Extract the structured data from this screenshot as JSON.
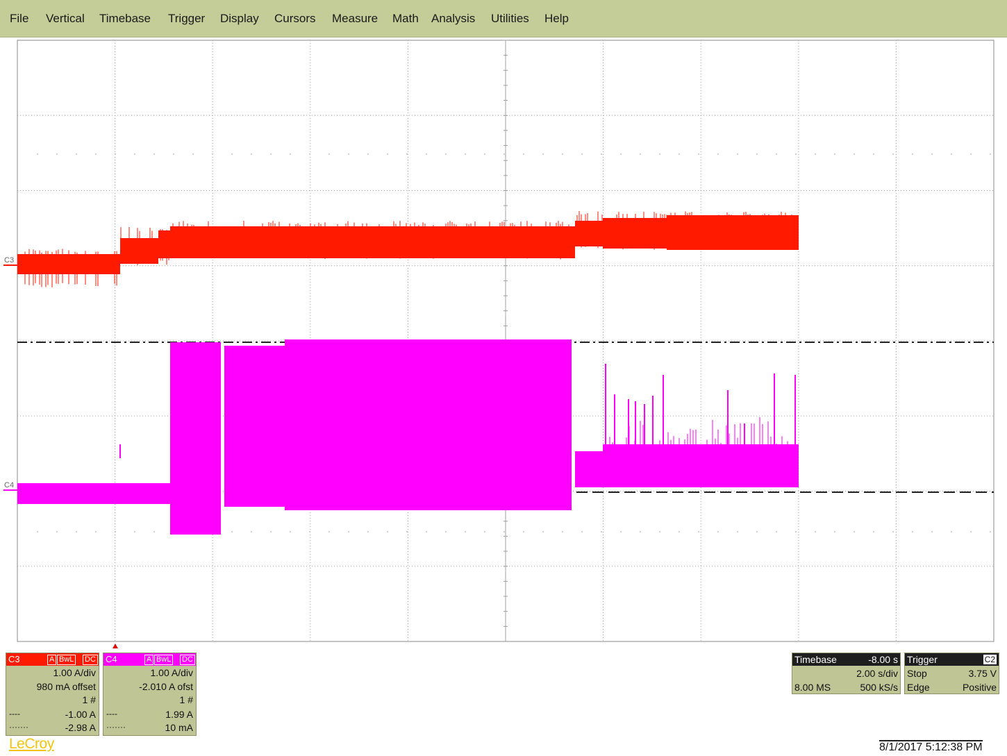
{
  "menu": [
    "File",
    "Vertical",
    "Timebase",
    "Trigger",
    "Display",
    "Cursors",
    "Measure",
    "Math",
    "Analysis",
    "Utilities",
    "Help"
  ],
  "colors": {
    "menu_bg": "#c4cd98",
    "panel_bg": "#bfc595",
    "c3": "#ff1a00",
    "c4": "#ff00ff",
    "grid": "#9a9a9a",
    "brand": "#f2c40f"
  },
  "waveform_labels": {
    "c3": "C3",
    "c4": "C4"
  },
  "channels": [
    {
      "id": "C3",
      "flags": [
        "A",
        "BwL",
        "DC"
      ],
      "scale": "1.00 A/div",
      "offset": "980 mA offset",
      "sweeps": "1 #",
      "cursor1": "-1.00 A",
      "cursor2": "-2.98 A",
      "cursor1_style": "----",
      "cursor2_style": "·······"
    },
    {
      "id": "C4",
      "flags": [
        "A",
        "BwL",
        "DC"
      ],
      "scale": "1.00 A/div",
      "offset": "-2.010 A ofst",
      "sweeps": "1 #",
      "cursor1": "1.99 A",
      "cursor2": "10 mA",
      "cursor1_style": "----",
      "cursor2_style": "·······"
    }
  ],
  "timebase": {
    "title": "Timebase",
    "delay": "-8.00 s",
    "scale": "2.00 s/div",
    "memory": "8.00 MS",
    "rate": "500 kS/s"
  },
  "trigger": {
    "title": "Trigger",
    "source": "C2",
    "mode": "Stop",
    "level": "3.75 V",
    "type": "Edge",
    "slope": "Positive"
  },
  "brand": "LeCroy",
  "timestamp": "8/1/2017 5:12:38 PM"
}
